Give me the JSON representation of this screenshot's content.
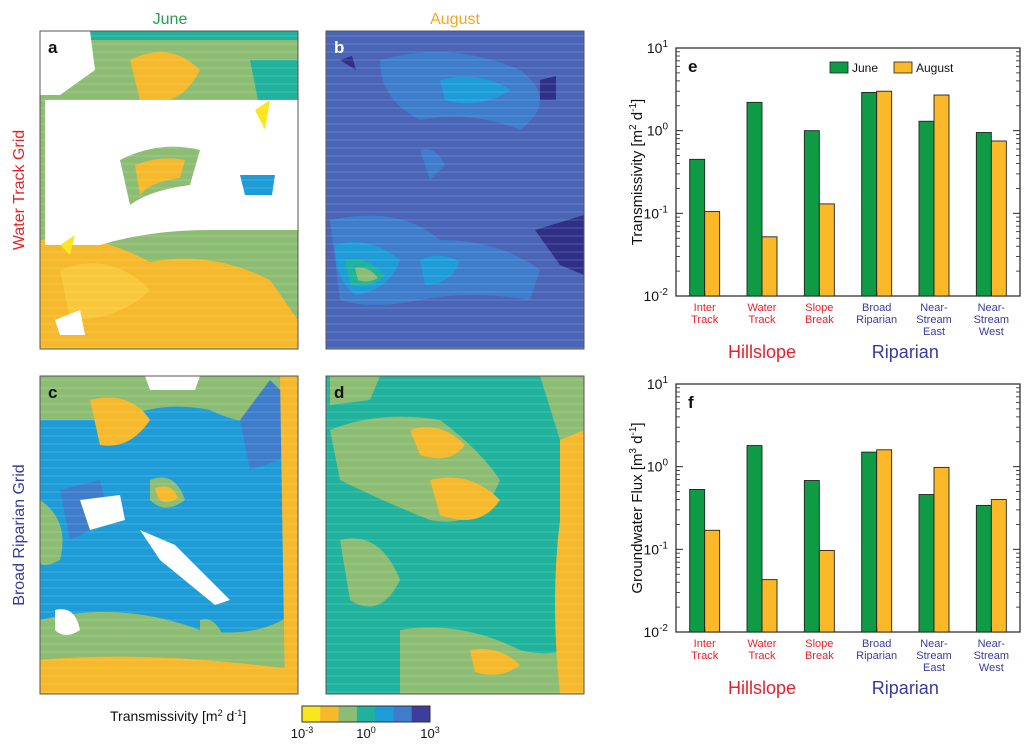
{
  "columns": {
    "june": "June",
    "august": "August"
  },
  "rows": {
    "water_track": "Water Track Grid",
    "broad_riparian": "Broad Riparian Grid"
  },
  "panel_letters": {
    "a": "a",
    "b": "b",
    "c": "c",
    "d": "d",
    "e": "e",
    "f": "f"
  },
  "colorbar": {
    "label_main": "Transmissivity [m",
    "label_sup1": "2",
    "label_mid": " d",
    "label_sup2": "-1",
    "label_end": "]",
    "ticks": [
      {
        "base": "10",
        "exp": "-3"
      },
      {
        "base": "10",
        "exp": "0"
      },
      {
        "base": "10",
        "exp": "3"
      }
    ],
    "colors": [
      "#f9e61d",
      "#f5b92b",
      "#8cbd73",
      "#1fb29c",
      "#1e9cd8",
      "#3e7ccc",
      "#3d3d9c"
    ]
  },
  "maps": {
    "a": {
      "background": "#f5b92b"
    },
    "b": {
      "background": "#4a64b8"
    },
    "c": {
      "background": "#1e9cd8"
    },
    "d": {
      "background": "#1fb29c"
    }
  },
  "chart_data": [
    {
      "panel": "e",
      "type": "bar",
      "ylabel_main": "Transmissivity [m",
      "ylabel_sup1": "2",
      "ylabel_mid": " d",
      "ylabel_sup2": "-1",
      "ylabel_end": "]",
      "yscale": "log",
      "ylim": [
        0.01,
        10
      ],
      "yticks": [
        {
          "base": "10",
          "exp": "-2"
        },
        {
          "base": "10",
          "exp": "-1"
        },
        {
          "base": "10",
          "exp": "0"
        },
        {
          "base": "10",
          "exp": "1"
        }
      ],
      "categories": [
        {
          "lines": [
            "Inter",
            "Track"
          ],
          "color": "#e8202a"
        },
        {
          "lines": [
            "Water",
            "Track"
          ],
          "color": "#e8202a"
        },
        {
          "lines": [
            "Slope",
            "Break"
          ],
          "color": "#e8202a"
        },
        {
          "lines": [
            "Broad",
            "Riparian"
          ],
          "color": "#3a3a9c"
        },
        {
          "lines": [
            "Near-",
            "Stream",
            "East"
          ],
          "color": "#3a3a9c"
        },
        {
          "lines": [
            "Near-",
            "Stream",
            "West"
          ],
          "color": "#3a3a9c"
        }
      ],
      "series": [
        {
          "name": "June",
          "color": "#0f9b46",
          "values": [
            0.45,
            2.2,
            1.0,
            2.9,
            1.3,
            0.95
          ]
        },
        {
          "name": "August",
          "color": "#fbb829",
          "values": [
            0.105,
            0.052,
            0.13,
            3.0,
            2.7,
            0.75
          ]
        }
      ],
      "groups": [
        {
          "label": "Hillslope",
          "color": "#e8202a"
        },
        {
          "label": "Riparian",
          "color": "#3a3a9c"
        }
      ],
      "legend": "top"
    },
    {
      "panel": "f",
      "type": "bar",
      "ylabel_main": "Groundwater Flux [m",
      "ylabel_sup1": "3",
      "ylabel_mid": " d",
      "ylabel_sup2": "-1",
      "ylabel_end": "]",
      "yscale": "log",
      "ylim": [
        0.01,
        10
      ],
      "yticks": [
        {
          "base": "10",
          "exp": "-2"
        },
        {
          "base": "10",
          "exp": "-1"
        },
        {
          "base": "10",
          "exp": "0"
        },
        {
          "base": "10",
          "exp": "1"
        }
      ],
      "categories": [
        {
          "lines": [
            "Inter",
            "Track"
          ],
          "color": "#e8202a"
        },
        {
          "lines": [
            "Water",
            "Track"
          ],
          "color": "#e8202a"
        },
        {
          "lines": [
            "Slope",
            "Break"
          ],
          "color": "#e8202a"
        },
        {
          "lines": [
            "Broad",
            "Riparian"
          ],
          "color": "#3a3a9c"
        },
        {
          "lines": [
            "Near-",
            "Stream",
            "East"
          ],
          "color": "#3a3a9c"
        },
        {
          "lines": [
            "Near-",
            "Stream",
            "West"
          ],
          "color": "#3a3a9c"
        }
      ],
      "series": [
        {
          "name": "June",
          "color": "#0f9b46",
          "values": [
            0.53,
            1.8,
            0.68,
            1.5,
            0.46,
            0.34
          ]
        },
        {
          "name": "August",
          "color": "#fbb829",
          "values": [
            0.17,
            0.043,
            0.097,
            1.6,
            0.98,
            0.4
          ]
        }
      ],
      "groups": [
        {
          "label": "Hillslope",
          "color": "#e8202a"
        },
        {
          "label": "Riparian",
          "color": "#3a3a9c"
        }
      ]
    }
  ]
}
